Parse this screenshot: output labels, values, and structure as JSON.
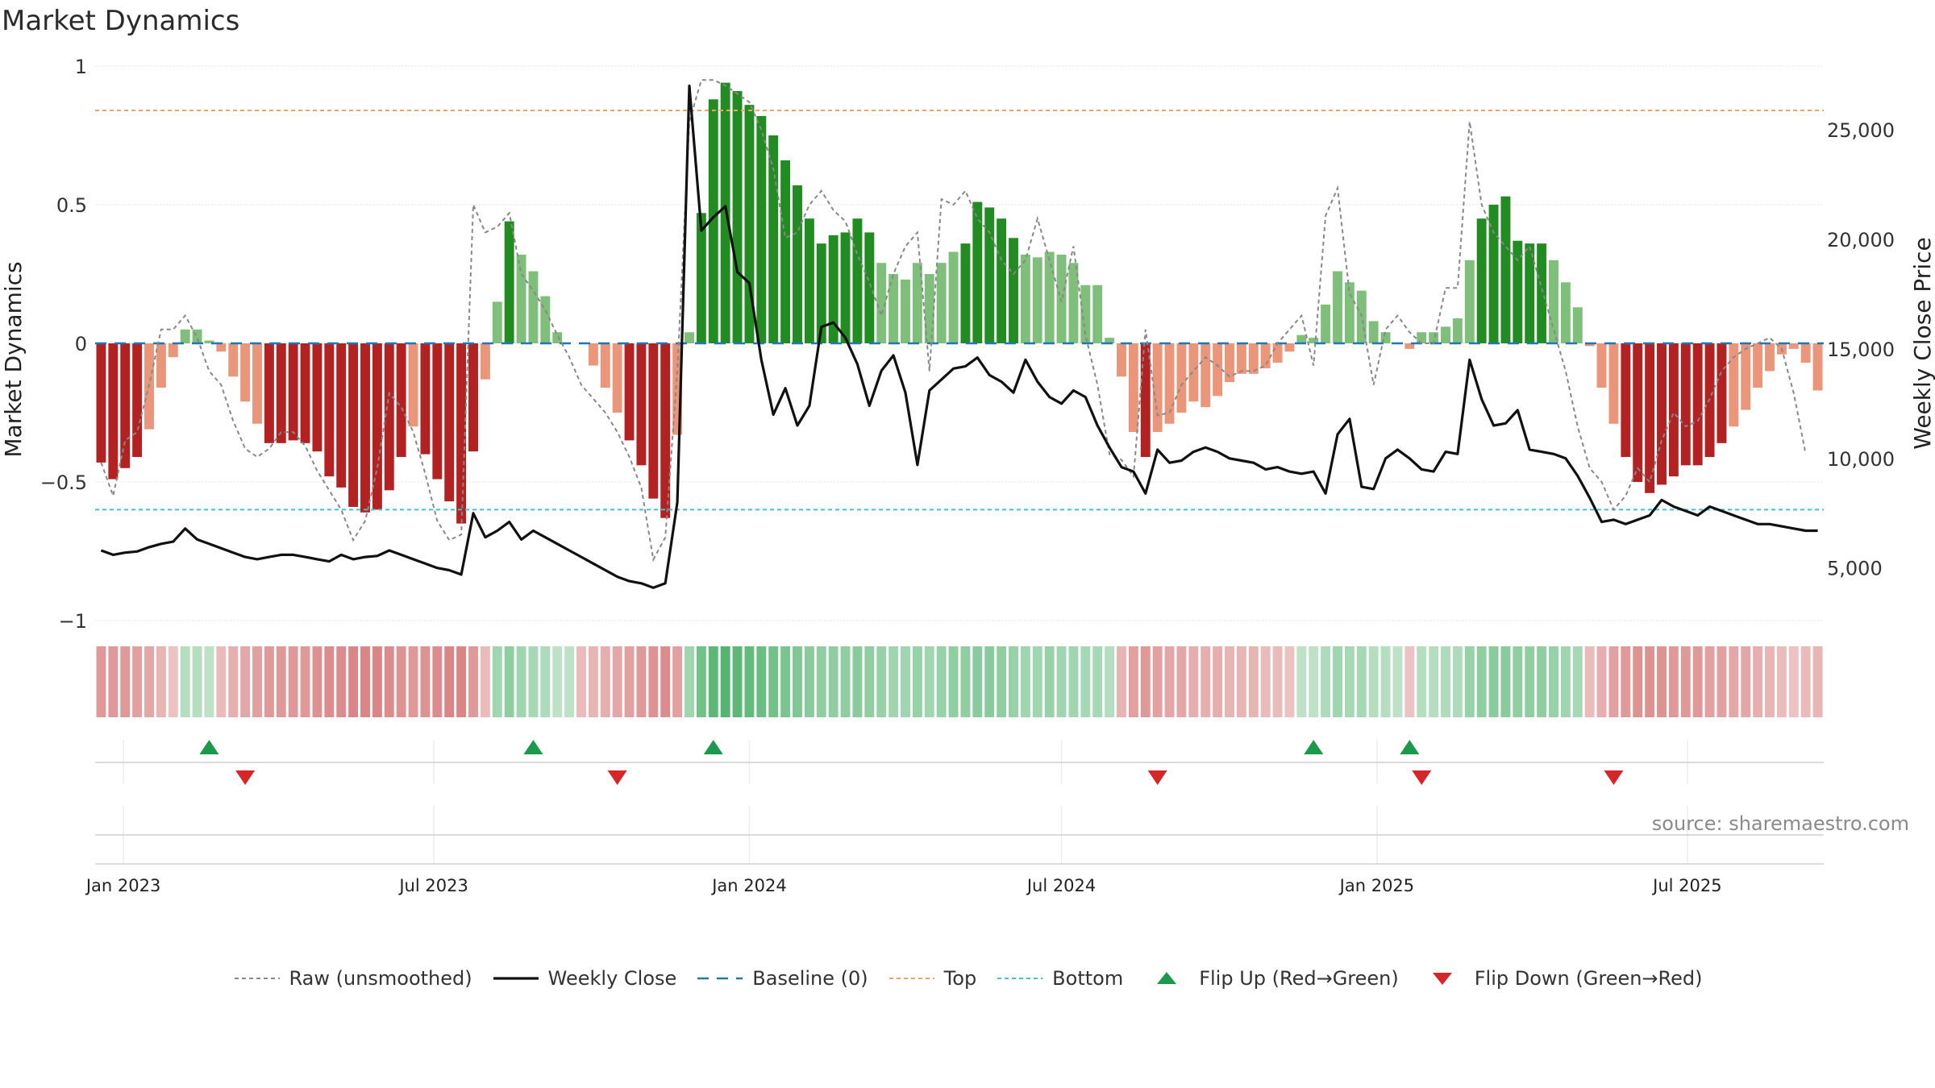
{
  "title": "Market Dynamics",
  "source": "source: sharemaestro.com",
  "colors": {
    "strong_green": "#228b22",
    "light_green": "#7fbf7b",
    "strong_red": "#b22222",
    "light_red": "#e9967a",
    "raw": "#888888",
    "close": "#111111",
    "baseline": "#1f77b4",
    "top": "#f4a261",
    "bottom": "#40c4d0",
    "flip_up": "#1a9a4a",
    "flip_down": "#d62728"
  },
  "chart_data": {
    "type": "bar",
    "x_start": "2022-12-19",
    "x_step_days": 7,
    "left_axis": {
      "label": "Market Dynamics",
      "ylim": [
        -1,
        1
      ],
      "ticks": [
        "1",
        "0.5",
        "0",
        "−0.5",
        "−1"
      ],
      "tick_values": [
        1,
        0.5,
        0,
        -0.5,
        -1
      ]
    },
    "right_axis": {
      "label": "Weekly Close Price",
      "ylim": [
        2600,
        27900
      ],
      "ticks": [
        "25,000",
        "20,000",
        "15,000",
        "10,000",
        "5,000"
      ],
      "tick_values": [
        25000,
        20000,
        15000,
        10000,
        5000
      ]
    },
    "x_ticks": [
      {
        "label": "Jan 2023",
        "date": "2023-01-01"
      },
      {
        "label": "Jul 2023",
        "date": "2023-07-01"
      },
      {
        "label": "Jan 2024",
        "date": "2024-01-01"
      },
      {
        "label": "Jul 2024",
        "date": "2024-07-01"
      },
      {
        "label": "Jan 2025",
        "date": "2025-01-01"
      },
      {
        "label": "Jul 2025",
        "date": "2025-07-01"
      }
    ],
    "top_line": 0.84,
    "bottom_line": -0.6,
    "bars": [
      -0.43,
      -0.49,
      -0.45,
      -0.41,
      -0.31,
      -0.16,
      -0.05,
      0.05,
      0.05,
      0.01,
      -0.03,
      -0.12,
      -0.21,
      -0.29,
      -0.36,
      -0.36,
      -0.35,
      -0.36,
      -0.39,
      -0.48,
      -0.52,
      -0.59,
      -0.61,
      -0.6,
      -0.53,
      -0.41,
      -0.3,
      -0.4,
      -0.49,
      -0.57,
      -0.65,
      -0.39,
      -0.13,
      0.15,
      0.44,
      0.32,
      0.26,
      0.17,
      0.04,
      0.0,
      0.0,
      -0.08,
      -0.16,
      -0.25,
      -0.35,
      -0.44,
      -0.56,
      -0.63,
      -0.33,
      0.04,
      0.47,
      0.88,
      0.94,
      0.91,
      0.86,
      0.82,
      0.75,
      0.66,
      0.57,
      0.45,
      0.36,
      0.39,
      0.4,
      0.45,
      0.4,
      0.29,
      0.25,
      0.23,
      0.29,
      0.25,
      0.29,
      0.33,
      0.36,
      0.51,
      0.49,
      0.45,
      0.38,
      0.32,
      0.31,
      0.33,
      0.32,
      0.29,
      0.21,
      0.21,
      0.02,
      -0.12,
      -0.32,
      -0.41,
      -0.32,
      -0.29,
      -0.25,
      -0.21,
      -0.23,
      -0.19,
      -0.14,
      -0.11,
      -0.11,
      -0.09,
      -0.07,
      -0.03,
      0.03,
      0.02,
      0.14,
      0.26,
      0.22,
      0.19,
      0.08,
      0.04,
      0.0,
      -0.02,
      0.04,
      0.04,
      0.06,
      0.09,
      0.3,
      0.45,
      0.5,
      0.53,
      0.37,
      0.36,
      0.36,
      0.3,
      0.22,
      0.13,
      -0.01,
      -0.16,
      -0.29,
      -0.41,
      -0.5,
      -0.54,
      -0.51,
      -0.48,
      -0.44,
      -0.44,
      -0.41,
      -0.36,
      -0.3,
      -0.24,
      -0.16,
      -0.1,
      -0.04,
      -0.02,
      -0.07,
      -0.17
    ],
    "raw": [
      -0.43,
      -0.55,
      -0.35,
      -0.32,
      -0.15,
      0.05,
      0.05,
      0.1,
      0.02,
      -0.1,
      -0.15,
      -0.28,
      -0.38,
      -0.41,
      -0.38,
      -0.32,
      -0.32,
      -0.37,
      -0.46,
      -0.53,
      -0.6,
      -0.71,
      -0.64,
      -0.45,
      -0.18,
      -0.23,
      -0.32,
      -0.47,
      -0.64,
      -0.71,
      -0.69,
      0.5,
      0.4,
      0.42,
      0.47,
      0.25,
      0.19,
      0.12,
      0.03,
      -0.05,
      -0.15,
      -0.2,
      -0.25,
      -0.32,
      -0.41,
      -0.52,
      -0.78,
      -0.7,
      -0.1,
      0.8,
      0.95,
      0.95,
      0.93,
      0.9,
      0.87,
      0.77,
      0.63,
      0.38,
      0.4,
      0.5,
      0.55,
      0.48,
      0.44,
      0.32,
      0.22,
      0.1,
      0.25,
      0.35,
      0.4,
      -0.1,
      0.52,
      0.5,
      0.55,
      0.45,
      0.4,
      0.3,
      0.25,
      0.3,
      0.45,
      0.3,
      0.15,
      0.35,
      0.03,
      -0.15,
      -0.4,
      -0.42,
      -0.48,
      0.05,
      -0.26,
      -0.25,
      -0.15,
      -0.1,
      -0.05,
      -0.08,
      -0.12,
      -0.1,
      -0.1,
      -0.08,
      0.0,
      0.05,
      0.1,
      -0.08,
      0.46,
      0.56,
      0.18,
      0.1,
      -0.15,
      0.05,
      0.1,
      0.04,
      0.0,
      0.0,
      0.2,
      0.2,
      0.8,
      0.5,
      0.4,
      0.35,
      0.3,
      0.35,
      0.2,
      0.05,
      -0.1,
      -0.3,
      -0.45,
      -0.5,
      -0.6,
      -0.55,
      -0.45,
      -0.5,
      -0.35,
      -0.25,
      -0.3,
      -0.28,
      -0.2,
      -0.1,
      -0.05,
      -0.02,
      0.0,
      0.02,
      -0.02,
      -0.18,
      -0.4
    ],
    "close": [
      5800,
      5600,
      5700,
      5750,
      5950,
      6100,
      6200,
      6800,
      6300,
      6100,
      5900,
      5700,
      5500,
      5400,
      5500,
      5600,
      5600,
      5500,
      5400,
      5300,
      5600,
      5400,
      5500,
      5550,
      5800,
      5600,
      5400,
      5200,
      5000,
      4900,
      4700,
      7500,
      6400,
      6700,
      7100,
      6300,
      6700,
      6400,
      6100,
      5800,
      5500,
      5200,
      4900,
      4600,
      4400,
      4300,
      4100,
      4300,
      8000,
      27000,
      20400,
      21000,
      21500,
      18500,
      18000,
      14500,
      12000,
      13200,
      11500,
      12400,
      16000,
      16200,
      15500,
      14300,
      12400,
      14000,
      14700,
      13000,
      9700,
      13100,
      13600,
      14100,
      14200,
      14600,
      13800,
      13500,
      13000,
      14500,
      13500,
      12800,
      12500,
      13100,
      12800,
      11500,
      10500,
      9600,
      9400,
      8400,
      10400,
      9800,
      9900,
      10300,
      10500,
      10300,
      10000,
      9900,
      9800,
      9500,
      9600,
      9400,
      9300,
      9400,
      8400,
      11100,
      11800,
      8700,
      8600,
      10000,
      10400,
      10000,
      9500,
      9400,
      10300,
      10200,
      14500,
      12700,
      11500,
      11600,
      12200,
      10400,
      10300,
      10200,
      10000,
      9200,
      8200,
      7100,
      7200,
      7000,
      7200,
      7400,
      8100,
      7800,
      7600,
      7400,
      7800,
      7600,
      7400,
      7200,
      7000,
      7000,
      6900,
      6800,
      6700,
      6700
    ],
    "band_intensity": [
      0.55,
      0.55,
      0.55,
      0.5,
      0.45,
      0.35,
      0.25,
      0.3,
      0.3,
      0.25,
      0.3,
      0.4,
      0.45,
      0.5,
      0.55,
      0.55,
      0.55,
      0.55,
      0.6,
      0.65,
      0.65,
      0.7,
      0.7,
      0.7,
      0.65,
      0.6,
      0.55,
      0.6,
      0.65,
      0.7,
      0.7,
      0.55,
      0.3,
      0.45,
      0.55,
      0.45,
      0.4,
      0.35,
      0.25,
      0.25,
      0.3,
      0.35,
      0.4,
      0.45,
      0.5,
      0.55,
      0.6,
      0.65,
      0.5,
      0.45,
      0.75,
      0.9,
      0.95,
      0.9,
      0.85,
      0.8,
      0.75,
      0.7,
      0.65,
      0.6,
      0.55,
      0.55,
      0.55,
      0.6,
      0.55,
      0.5,
      0.45,
      0.45,
      0.5,
      0.45,
      0.5,
      0.55,
      0.55,
      0.6,
      0.6,
      0.55,
      0.5,
      0.45,
      0.45,
      0.5,
      0.45,
      0.45,
      0.4,
      0.4,
      0.3,
      0.35,
      0.5,
      0.55,
      0.5,
      0.45,
      0.45,
      0.4,
      0.4,
      0.4,
      0.35,
      0.35,
      0.35,
      0.3,
      0.3,
      0.25,
      0.25,
      0.25,
      0.35,
      0.45,
      0.4,
      0.4,
      0.3,
      0.3,
      0.25,
      0.25,
      0.3,
      0.3,
      0.35,
      0.35,
      0.5,
      0.55,
      0.6,
      0.6,
      0.55,
      0.55,
      0.55,
      0.5,
      0.45,
      0.4,
      0.3,
      0.4,
      0.5,
      0.55,
      0.6,
      0.6,
      0.6,
      0.55,
      0.55,
      0.55,
      0.5,
      0.5,
      0.45,
      0.45,
      0.4,
      0.35,
      0.3,
      0.25,
      0.3,
      0.35
    ],
    "flips_up": [
      9,
      36,
      51,
      101,
      109
    ],
    "flips_down": [
      12,
      43,
      88,
      110,
      126
    ],
    "legend": [
      {
        "key": "raw",
        "label": "Raw (unsmoothed)"
      },
      {
        "key": "close",
        "label": "Weekly Close"
      },
      {
        "key": "baseline",
        "label": "Baseline (0)"
      },
      {
        "key": "top",
        "label": "Top"
      },
      {
        "key": "bottom",
        "label": "Bottom"
      },
      {
        "key": "flip_up",
        "label": "Flip Up (Red→Green)"
      },
      {
        "key": "flip_down",
        "label": "Flip Down (Green→Red)"
      }
    ]
  }
}
